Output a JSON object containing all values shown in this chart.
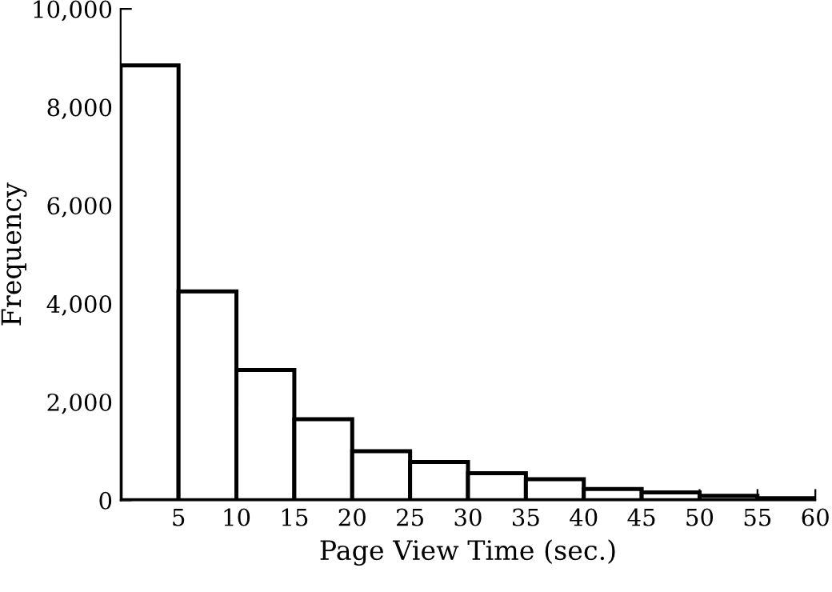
{
  "chart_data": {
    "type": "histogram",
    "xlabel": "Page View Time (sec.)",
    "ylabel": "Frequency",
    "bins": [
      0,
      5,
      10,
      15,
      20,
      25,
      30,
      35,
      40,
      45,
      50,
      55,
      60
    ],
    "values": [
      8850,
      4250,
      2650,
      1650,
      1000,
      780,
      550,
      430,
      230,
      160,
      90,
      40
    ],
    "color": "#ffffff",
    "xlim": [
      0,
      60
    ],
    "xticks": [
      5,
      10,
      15,
      20,
      25,
      30,
      35,
      40,
      45,
      50,
      55,
      60
    ],
    "ylim": [
      0,
      10000
    ],
    "yticks": [
      {
        "value": 0,
        "label": "0"
      },
      {
        "value": 2000,
        "label": "2,000"
      },
      {
        "value": 4000,
        "label": "4,000"
      },
      {
        "value": 6000,
        "label": "6,000"
      },
      {
        "value": 8000,
        "label": "8,000"
      },
      {
        "value": 10000,
        "label": "10,000"
      }
    ],
    "grid": false
  }
}
